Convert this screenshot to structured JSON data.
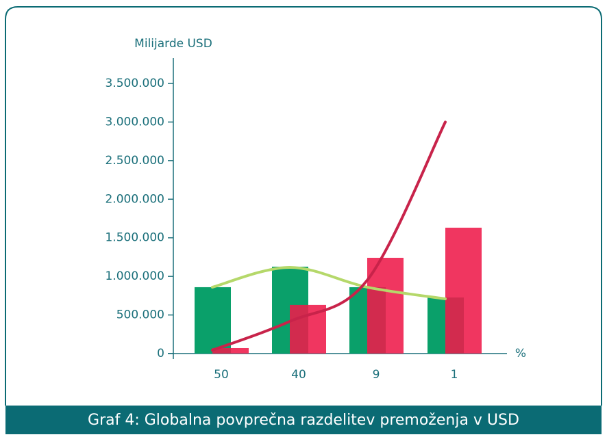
{
  "chart_data": {
    "type": "bar",
    "title": "Graf 4: Globalna povprečna razdelitev premoženja v USD",
    "y_label": "Milijarde USD",
    "x_label": "%",
    "categories": [
      "50",
      "40",
      "9",
      "1"
    ],
    "ylim": [
      0,
      3500000
    ],
    "yticks": [
      0,
      {
        "value": 500000,
        "label": "500.000"
      },
      {
        "value": 1000000,
        "label": "1.000.000"
      },
      {
        "value": 1500000,
        "label": "1.500.000"
      },
      {
        "value": 2000000,
        "label": "2.000.000"
      },
      {
        "value": 2500000,
        "label": "2.500.000"
      },
      {
        "value": 3000000,
        "label": "3.000.000"
      },
      {
        "value": 3500000,
        "label": "3.500.000"
      }
    ],
    "series": [
      {
        "color": "#0aa06a",
        "values": [
          860000,
          1126000,
          860000,
          727000
        ]
      },
      {
        "color": "#ee1a4a",
        "values": [
          71000,
          630000,
          1241000,
          1631000
        ]
      }
    ],
    "lines": [
      {
        "color": "#b5d86a",
        "values": [
          860000,
          1117000,
          860000,
          709000
        ]
      },
      {
        "color": "#c8234a",
        "values": [
          44000,
          417000,
          950000,
          3000000
        ]
      }
    ]
  }
}
